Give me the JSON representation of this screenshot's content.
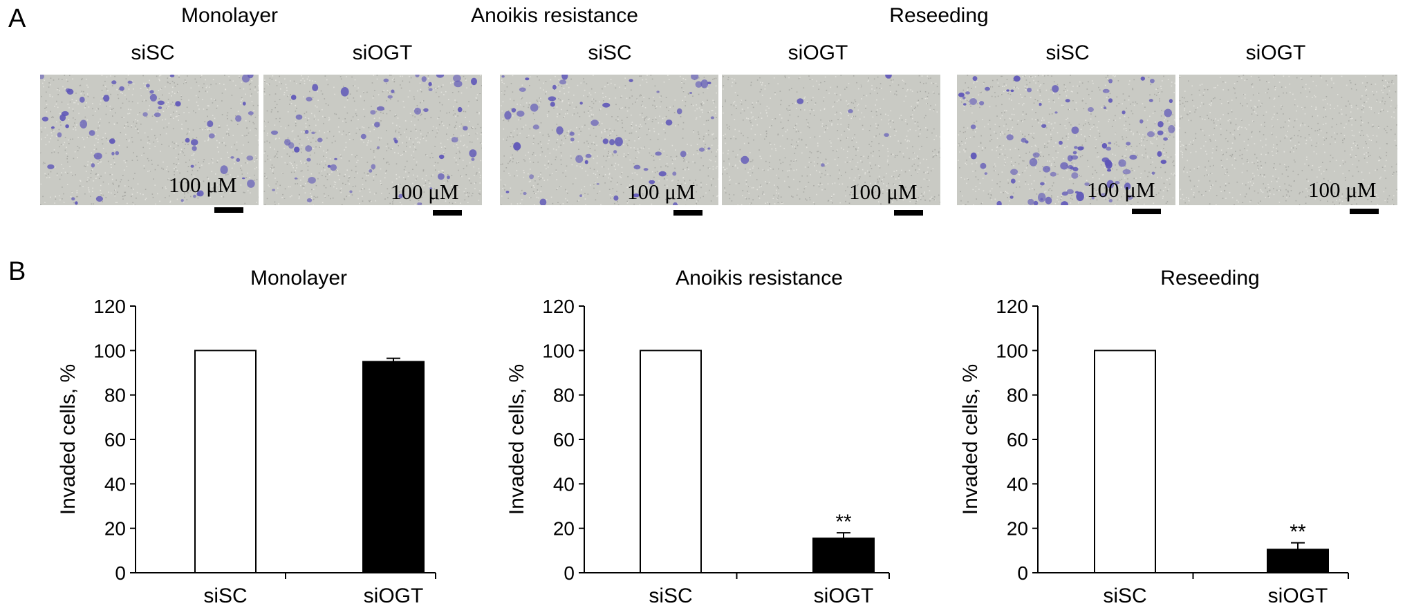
{
  "panel_a": {
    "letter": "A",
    "groups": [
      {
        "title": "Monolayer",
        "conditions": [
          {
            "label": "siSC",
            "scale_label": "100 μM",
            "cell_density": "medium"
          },
          {
            "label": "siOGT",
            "scale_label": "100 μM",
            "cell_density": "medium"
          }
        ]
      },
      {
        "title": "Anoikis resistance",
        "conditions": [
          {
            "label": "siSC",
            "scale_label": "100 μM",
            "cell_density": "medium"
          },
          {
            "label": "siOGT",
            "scale_label": "100 μM",
            "cell_density": "low"
          }
        ]
      },
      {
        "title": "Reseeding",
        "conditions": [
          {
            "label": "siSC",
            "scale_label": "100 μM",
            "cell_density": "high"
          },
          {
            "label": "siOGT",
            "scale_label": "100 μM",
            "cell_density": "none"
          }
        ]
      }
    ],
    "colors": {
      "membrane": "#c9cac4",
      "stain": "#5d55b8"
    }
  },
  "panel_b": {
    "letter": "B"
  },
  "chart_data": [
    {
      "type": "bar",
      "title": "Monolayer",
      "ylabel": "Invaded cells, %",
      "xlabel": "",
      "categories": [
        "siSC",
        "siOGT"
      ],
      "values": [
        100,
        95
      ],
      "errors": [
        0,
        1.5
      ],
      "fills": [
        "#ffffff",
        "#000000"
      ],
      "annotations": [
        "",
        ""
      ],
      "ylim": [
        0,
        120
      ],
      "yticks": [
        "0",
        "20",
        "40",
        "60",
        "80",
        "100",
        "120"
      ],
      "grid": false
    },
    {
      "type": "bar",
      "title": "Anoikis resistance",
      "ylabel": "Invaded cells, %",
      "xlabel": "",
      "categories": [
        "siSC",
        "siOGT"
      ],
      "values": [
        100,
        15.5
      ],
      "errors": [
        0,
        2.5
      ],
      "fills": [
        "#ffffff",
        "#000000"
      ],
      "annotations": [
        "",
        "**"
      ],
      "ylim": [
        0,
        120
      ],
      "yticks": [
        "0",
        "20",
        "40",
        "60",
        "80",
        "100",
        "120"
      ],
      "grid": false
    },
    {
      "type": "bar",
      "title": "Reseeding",
      "ylabel": "Invaded cells, %",
      "xlabel": "",
      "categories": [
        "siSC",
        "siOGT"
      ],
      "values": [
        100,
        10.5
      ],
      "errors": [
        0,
        3
      ],
      "fills": [
        "#ffffff",
        "#000000"
      ],
      "annotations": [
        "",
        "**"
      ],
      "ylim": [
        0,
        120
      ],
      "yticks": [
        "0",
        "20",
        "40",
        "60",
        "80",
        "100",
        "120"
      ],
      "grid": false
    }
  ]
}
